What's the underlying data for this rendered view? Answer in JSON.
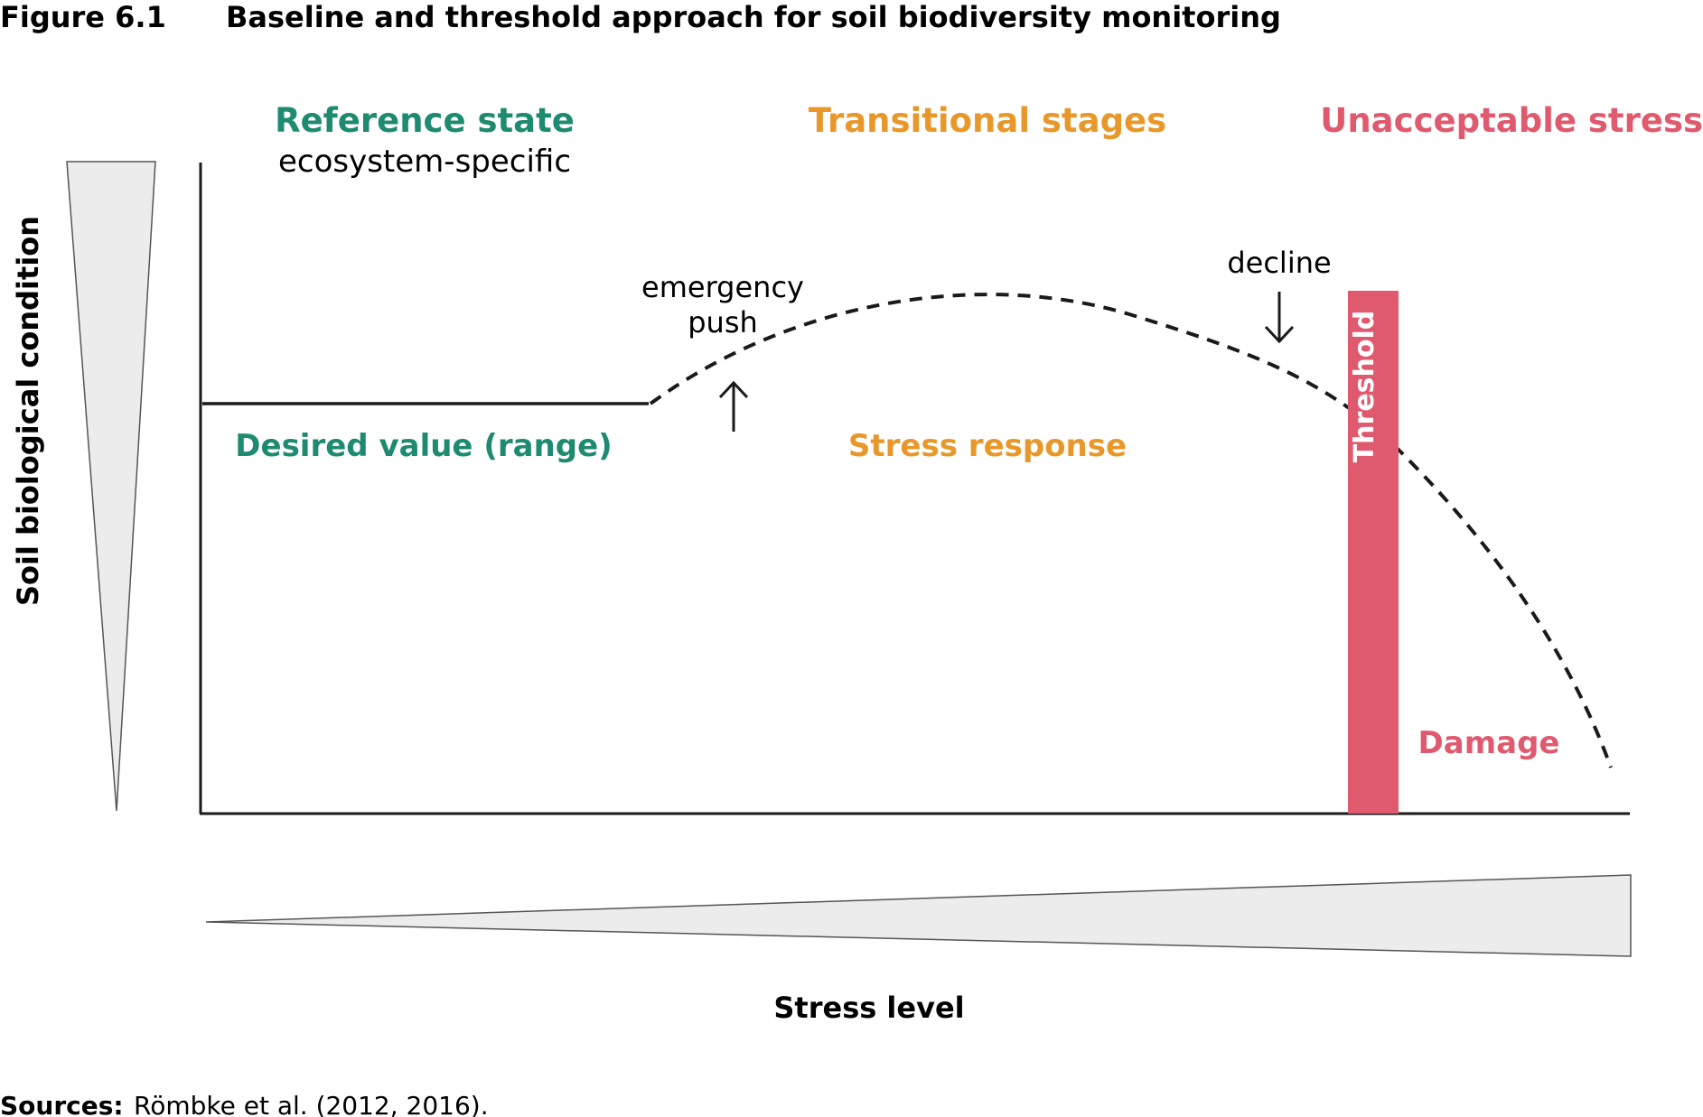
{
  "figure": {
    "number": "Figure 6.1",
    "title": "Baseline and threshold approach for soil biodiversity monitoring"
  },
  "zones": {
    "reference": {
      "label": "Reference state",
      "sublabel": "ecosystem-specific",
      "region_label": "Desired value (range)"
    },
    "transitional": {
      "label": "Transitional stages",
      "region_label": "Stress response"
    },
    "unacceptable": {
      "label": "Unacceptable stress",
      "region_label": "Damage"
    }
  },
  "annotations": {
    "emergency_line1": "emergency",
    "emergency_line2": "push",
    "decline": "decline",
    "threshold": "Threshold"
  },
  "axes": {
    "y_label": "Soil biological condition",
    "x_label": "Stress level"
  },
  "sources": {
    "label": "Sources:",
    "text": "Römbke et al. (2012, 2016)."
  },
  "colors": {
    "green": "#1e8a70",
    "orange": "#e8982a",
    "red": "#e05a6f",
    "wedge_fill": "#ececec",
    "line": "#1a1a1a"
  }
}
